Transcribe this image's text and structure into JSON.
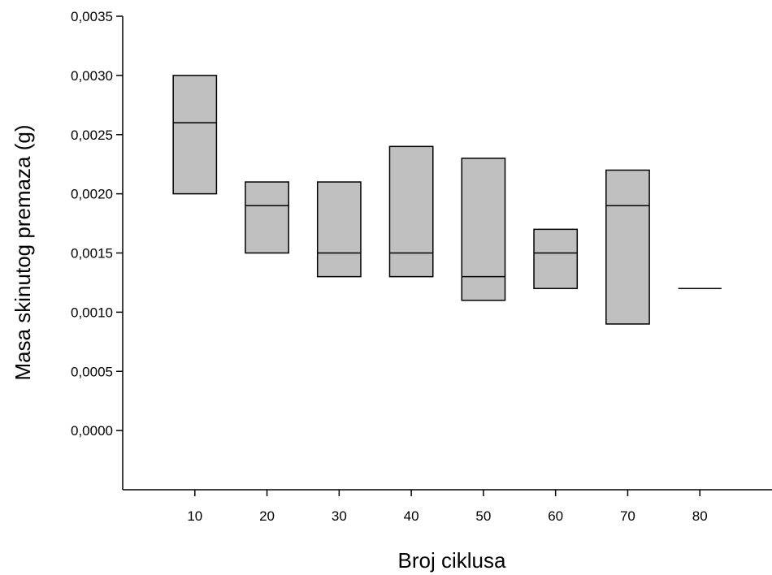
{
  "chart_data": {
    "type": "box",
    "title": "",
    "xlabel": "Broj ciklusa",
    "ylabel": "Masa skinutog premaza (g)",
    "categories": [
      "10",
      "20",
      "30",
      "40",
      "50",
      "60",
      "70",
      "80"
    ],
    "boxes": [
      {
        "x": 10,
        "low": 0.002,
        "median": 0.0026,
        "high": 0.003
      },
      {
        "x": 20,
        "low": 0.0015,
        "median": 0.0019,
        "high": 0.0021
      },
      {
        "x": 30,
        "low": 0.0013,
        "median": 0.0015,
        "high": 0.0021
      },
      {
        "x": 40,
        "low": 0.0013,
        "median": 0.0015,
        "high": 0.0024
      },
      {
        "x": 50,
        "low": 0.0011,
        "median": 0.0013,
        "high": 0.0023
      },
      {
        "x": 60,
        "low": 0.0012,
        "median": 0.0015,
        "high": 0.0017
      },
      {
        "x": 70,
        "low": 0.0009,
        "median": 0.0019,
        "high": 0.0022
      },
      {
        "x": 80,
        "low": 0.0012,
        "median": 0.0012,
        "high": 0.0012
      }
    ],
    "xlim": [
      0,
      90
    ],
    "ylim": [
      -0.0005,
      0.0035
    ],
    "yticks": [
      "0,0000",
      "0,0005",
      "0,0010",
      "0,0015",
      "0,0020",
      "0,0025",
      "0,0030",
      "0,0035"
    ],
    "ytick_values": [
      0,
      0.0005,
      0.001,
      0.0015,
      0.002,
      0.0025,
      0.003,
      0.0035
    ],
    "xticks": [
      "10",
      "20",
      "30",
      "40",
      "50",
      "60",
      "70",
      "80"
    ],
    "xtick_values": [
      10,
      20,
      30,
      40,
      50,
      60,
      70,
      80
    ],
    "box_fill": "#c0c0c0",
    "line_color": "#000000",
    "grid": false,
    "legend": "none"
  }
}
